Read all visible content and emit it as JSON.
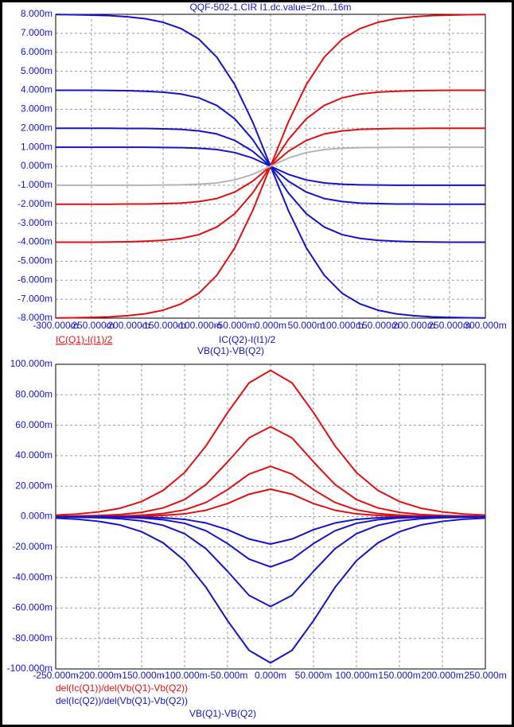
{
  "chart_data": [
    {
      "type": "line",
      "title": "QQF-502-1.CIR I1.dc.value=2m...16m",
      "x_label": "VB(Q1)-VB(Q2)",
      "legend": [
        {
          "name": "IC(Q1)-I(I1)/2",
          "color": "#e01010"
        },
        {
          "name": "IC(Q2)-I(I1)/2",
          "color": "#1414c8"
        }
      ],
      "xlim": [
        -300,
        300
      ],
      "ylim": [
        -8,
        8
      ],
      "grid": true,
      "xticks": [
        {
          "value": -300,
          "label": "-300.000m"
        },
        {
          "value": -250,
          "label": "-250.000m"
        },
        {
          "value": -200,
          "label": "-200.000m"
        },
        {
          "value": -150,
          "label": "-150.000m"
        },
        {
          "value": -100,
          "label": "-100.000m"
        },
        {
          "value": -50,
          "label": "-50.000m"
        },
        {
          "value": 0,
          "label": "0.000m"
        },
        {
          "value": 50,
          "label": "50.000m"
        },
        {
          "value": 100,
          "label": "100.000m"
        },
        {
          "value": 150,
          "label": "150.000m"
        },
        {
          "value": 200,
          "label": "200.000m"
        },
        {
          "value": 250,
          "label": "250.000m"
        },
        {
          "value": 300,
          "label": "300.000m"
        }
      ],
      "yticks": [
        {
          "value": 8,
          "label": "8.000m"
        },
        {
          "value": 7,
          "label": "7.000m"
        },
        {
          "value": 6,
          "label": "6.000m"
        },
        {
          "value": 5,
          "label": "5.000m"
        },
        {
          "value": 4,
          "label": "4.000m"
        },
        {
          "value": 3,
          "label": "3.000m"
        },
        {
          "value": 2,
          "label": "2.000m"
        },
        {
          "value": 1,
          "label": "1.000m"
        },
        {
          "value": 0,
          "label": "0.000m"
        },
        {
          "value": -1,
          "label": "-1.000m"
        },
        {
          "value": -2,
          "label": "-2.000m"
        },
        {
          "value": -3,
          "label": "-3.000m"
        },
        {
          "value": -4,
          "label": "-4.000m"
        },
        {
          "value": -5,
          "label": "-5.000m"
        },
        {
          "value": -6,
          "label": "-6.000m"
        },
        {
          "value": -7,
          "label": "-7.000m"
        },
        {
          "value": -8,
          "label": "-8.000m"
        }
      ],
      "x": [
        -300,
        -275,
        -250,
        -225,
        -200,
        -175,
        -150,
        -125,
        -100,
        -75,
        -50,
        -25,
        0,
        25,
        50,
        75,
        100,
        125,
        150,
        175,
        200,
        225,
        250,
        275,
        300
      ],
      "series": [
        {
          "color": "#1414c8",
          "values": [
            7.99,
            7.98,
            7.96,
            7.93,
            7.87,
            7.77,
            7.58,
            7.25,
            6.69,
            5.74,
            4.3,
            2.34,
            0,
            -2.34,
            -4.3,
            -5.74,
            -6.69,
            -7.25,
            -7.58,
            -7.77,
            -7.87,
            -7.93,
            -7.96,
            -7.98,
            -7.99
          ]
        },
        {
          "color": "#1414c8",
          "values": [
            4,
            4,
            4,
            3.99,
            3.98,
            3.95,
            3.9,
            3.8,
            3.6,
            3.2,
            2.5,
            1.41,
            0,
            -1.41,
            -2.5,
            -3.2,
            -3.6,
            -3.8,
            -3.9,
            -3.95,
            -3.98,
            -3.99,
            -4,
            -4,
            -4
          ]
        },
        {
          "color": "#1414c8",
          "values": [
            2,
            2,
            2,
            2,
            1.99,
            1.99,
            1.97,
            1.94,
            1.86,
            1.7,
            1.36,
            0.79,
            0,
            -0.79,
            -1.36,
            -1.7,
            -1.86,
            -1.94,
            -1.97,
            -1.99,
            -1.99,
            -2,
            -2,
            -2,
            -2
          ]
        },
        {
          "color": "#1414c8",
          "values": [
            1,
            1,
            1,
            1,
            1,
            1,
            0.99,
            0.98,
            0.95,
            0.88,
            0.72,
            0.43,
            0,
            -0.43,
            -0.72,
            -0.88,
            -0.95,
            -0.98,
            -0.99,
            -1,
            -1,
            -1,
            -1,
            -1,
            -1
          ]
        },
        {
          "color": "#e01010",
          "values": [
            -7.99,
            -7.98,
            -7.96,
            -7.93,
            -7.87,
            -7.77,
            -7.58,
            -7.25,
            -6.69,
            -5.74,
            -4.3,
            -2.34,
            0,
            2.34,
            4.3,
            5.74,
            6.69,
            7.25,
            7.58,
            7.77,
            7.87,
            7.93,
            7.96,
            7.98,
            7.99
          ]
        },
        {
          "color": "#e01010",
          "values": [
            -4,
            -4,
            -4,
            -3.99,
            -3.98,
            -3.95,
            -3.9,
            -3.8,
            -3.6,
            -3.2,
            -2.5,
            -1.41,
            0,
            1.41,
            2.5,
            3.2,
            3.6,
            3.8,
            3.9,
            3.95,
            3.98,
            3.99,
            4,
            4,
            4
          ]
        },
        {
          "color": "#e01010",
          "values": [
            -2,
            -2,
            -2,
            -2,
            -1.99,
            -1.99,
            -1.97,
            -1.94,
            -1.86,
            -1.7,
            -1.36,
            -0.79,
            0,
            0.79,
            1.36,
            1.7,
            1.86,
            1.94,
            1.97,
            1.99,
            1.99,
            2,
            2,
            2,
            2
          ]
        },
        {
          "color": "#b4b4b4",
          "values": [
            -1,
            -1,
            -1,
            -1,
            -1,
            -1,
            -0.99,
            -0.98,
            -0.95,
            -0.88,
            -0.72,
            -0.43,
            0,
            0.43,
            0.72,
            0.88,
            0.95,
            0.98,
            0.99,
            1,
            1,
            1,
            1,
            1,
            1
          ]
        }
      ]
    },
    {
      "type": "line",
      "x_label": "VB(Q1)-VB(Q2)",
      "legend": [
        {
          "name": "del(Ic(Q1))/del(Vb(Q1)-Vb(Q2))",
          "color": "#e01010"
        },
        {
          "name": "del(Ic(Q2))/del(Vb(Q1)-Vb(Q2))",
          "color": "#1414c8"
        }
      ],
      "xlim": [
        -250,
        250
      ],
      "ylim": [
        -100,
        100
      ],
      "grid": true,
      "xticks": [
        {
          "value": -250,
          "label": "-250.000m"
        },
        {
          "value": -200,
          "label": "-200.000m"
        },
        {
          "value": -150,
          "label": "-150.000m"
        },
        {
          "value": -100,
          "label": "-100.000m"
        },
        {
          "value": -50,
          "label": "-50.000m"
        },
        {
          "value": 0,
          "label": "0.000m"
        },
        {
          "value": 50,
          "label": "50.000m"
        },
        {
          "value": 100,
          "label": "100.000m"
        },
        {
          "value": 150,
          "label": "150.000m"
        },
        {
          "value": 200,
          "label": "200.000m"
        },
        {
          "value": 250,
          "label": "250.000m"
        }
      ],
      "yticks": [
        {
          "value": 100,
          "label": "100.000m"
        },
        {
          "value": 80,
          "label": "80.000m"
        },
        {
          "value": 60,
          "label": "60.000m"
        },
        {
          "value": 40,
          "label": "40.000m"
        },
        {
          "value": 20,
          "label": "20.000m"
        },
        {
          "value": 0,
          "label": "0.000m"
        },
        {
          "value": -20,
          "label": "-20.000m"
        },
        {
          "value": -40,
          "label": "-40.000m"
        },
        {
          "value": -60,
          "label": "-60.000m"
        },
        {
          "value": -80,
          "label": "-80.000m"
        },
        {
          "value": -100,
          "label": "-100.000m"
        }
      ],
      "x": [
        -250,
        -225,
        -200,
        -175,
        -150,
        -125,
        -100,
        -75,
        -50,
        -25,
        0,
        25,
        50,
        75,
        100,
        125,
        150,
        175,
        200,
        225,
        250
      ],
      "series": [
        {
          "color": "#e01010",
          "values": [
            1.0,
            1.7,
            3.1,
            5.5,
            9.9,
            17.2,
            28.9,
            46.5,
            68.3,
            87.8,
            96,
            87.8,
            68.3,
            46.5,
            28.9,
            17.2,
            9.9,
            5.5,
            3.1,
            1.7,
            1.0
          ]
        },
        {
          "color": "#e01010",
          "values": [
            0.1,
            0.4,
            0.7,
            1.4,
            2.8,
            5.7,
            11.2,
            21.1,
            35.9,
            51.7,
            59,
            51.7,
            35.9,
            21.1,
            11.2,
            5.7,
            2.8,
            1.4,
            0.7,
            0.4,
            0.1
          ]
        },
        {
          "color": "#e01010",
          "values": [
            0,
            0.1,
            0.2,
            0.4,
            0.9,
            2.0,
            4.4,
            9.3,
            17.7,
            27.9,
            33,
            27.9,
            17.7,
            9.3,
            4.4,
            2.0,
            0.9,
            0.4,
            0.2,
            0.1,
            0
          ]
        },
        {
          "color": "#e01010",
          "values": [
            0,
            0,
            0,
            0.1,
            0.3,
            0.8,
            1.8,
            4.2,
            8.6,
            14.7,
            18,
            14.7,
            8.6,
            4.2,
            1.8,
            0.8,
            0.3,
            0.1,
            0,
            0,
            0
          ]
        },
        {
          "color": "#1414c8",
          "values": [
            -1.0,
            -1.7,
            -3.1,
            -5.5,
            -9.9,
            -17.2,
            -28.9,
            -46.5,
            -68.3,
            -87.8,
            -96,
            -87.8,
            -68.3,
            -46.5,
            -28.9,
            -17.2,
            -9.9,
            -5.5,
            -3.1,
            -1.7,
            -1.0
          ]
        },
        {
          "color": "#1414c8",
          "values": [
            -0.1,
            -0.4,
            -0.7,
            -1.4,
            -2.8,
            -5.7,
            -11.2,
            -21.1,
            -35.9,
            -51.7,
            -59,
            -51.7,
            -35.9,
            -21.1,
            -11.2,
            -5.7,
            -2.8,
            -1.4,
            -0.7,
            -0.4,
            -0.1
          ]
        },
        {
          "color": "#1414c8",
          "values": [
            0,
            -0.1,
            -0.2,
            -0.4,
            -0.9,
            -2.0,
            -4.4,
            -9.3,
            -17.7,
            -27.9,
            -33,
            -27.9,
            -17.7,
            -9.3,
            -4.4,
            -2.0,
            -0.9,
            -0.4,
            -0.2,
            -0.1,
            0
          ]
        },
        {
          "color": "#1414c8",
          "values": [
            0,
            0,
            0,
            -0.1,
            -0.3,
            -0.8,
            -1.8,
            -4.2,
            -8.6,
            -14.7,
            -18,
            -14.7,
            -8.6,
            -4.2,
            -1.8,
            -0.8,
            -0.3,
            -0.1,
            0,
            0,
            0
          ]
        }
      ]
    }
  ]
}
